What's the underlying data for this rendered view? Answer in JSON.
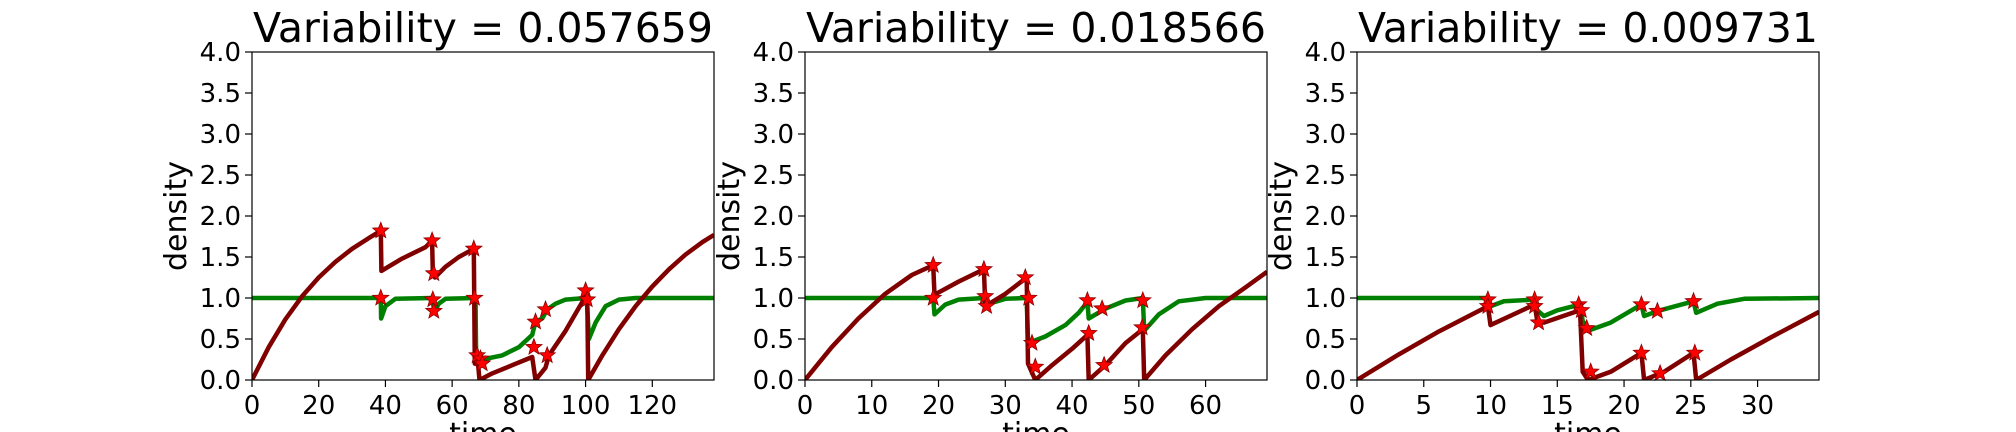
{
  "colors": {
    "green": "#008000",
    "darkred": "#800000",
    "marker": "#ff0000"
  },
  "chart_data": [
    {
      "type": "line",
      "title": "Variability = 0.057659",
      "xlabel": "time",
      "ylabel": "density",
      "xlim": [
        0,
        138.5
      ],
      "ylim": [
        0,
        4.0
      ],
      "xticks": [
        0,
        20,
        40,
        60,
        80,
        100,
        120
      ],
      "yticks": [
        0.0,
        0.5,
        1.0,
        1.5,
        2.0,
        2.5,
        3.0,
        3.5,
        4.0
      ],
      "series": [
        {
          "color": "#008000",
          "points": [
            [
              0,
              1.0
            ],
            [
              38.6,
              1.0
            ],
            [
              38.7,
              0.75
            ],
            [
              40,
              0.9
            ],
            [
              43,
              0.99
            ],
            [
              54,
              1.0
            ],
            [
              54.2,
              0.93
            ],
            [
              54.8,
              0.84
            ],
            [
              56,
              0.93
            ],
            [
              58,
              0.99
            ],
            [
              67,
              1.0
            ],
            [
              67.2,
              0.2
            ],
            [
              69,
              0.25
            ],
            [
              75,
              0.3
            ],
            [
              80,
              0.4
            ],
            [
              84,
              0.55
            ],
            [
              85,
              0.71
            ],
            [
              87,
              0.75
            ],
            [
              88.5,
              0.86
            ],
            [
              91,
              0.93
            ],
            [
              94,
              0.98
            ],
            [
              100,
              1.0
            ],
            [
              100.5,
              0.9
            ],
            [
              101,
              0.5
            ],
            [
              103,
              0.7
            ],
            [
              106,
              0.9
            ],
            [
              110,
              0.98
            ],
            [
              115,
              1.0
            ],
            [
              138.5,
              1.0
            ]
          ]
        },
        {
          "color": "#800000",
          "points": [
            [
              0,
              0
            ],
            [
              5,
              0.4
            ],
            [
              10,
              0.74
            ],
            [
              15,
              1.02
            ],
            [
              20,
              1.25
            ],
            [
              25,
              1.44
            ],
            [
              30,
              1.6
            ],
            [
              35,
              1.73
            ],
            [
              38.6,
              1.82
            ],
            [
              38.8,
              1.33
            ],
            [
              45,
              1.48
            ],
            [
              52,
              1.62
            ],
            [
              54,
              1.7
            ],
            [
              54.2,
              1.32
            ],
            [
              54.8,
              1.25
            ],
            [
              58,
              1.38
            ],
            [
              62,
              1.5
            ],
            [
              66.5,
              1.6
            ],
            [
              66.8,
              0.2
            ],
            [
              67.5,
              0.31
            ],
            [
              68.2,
              0.0
            ],
            [
              72,
              0.08
            ],
            [
              78,
              0.18
            ],
            [
              84,
              0.28
            ],
            [
              85,
              0.0
            ],
            [
              88,
              0.15
            ],
            [
              89,
              0.3
            ],
            [
              94,
              0.6
            ],
            [
              99,
              0.95
            ],
            [
              100.5,
              1.09
            ],
            [
              100.8,
              0.0
            ],
            [
              105,
              0.3
            ],
            [
              110,
              0.62
            ],
            [
              115,
              0.9
            ],
            [
              120,
              1.14
            ],
            [
              125,
              1.35
            ],
            [
              130,
              1.53
            ],
            [
              135,
              1.68
            ],
            [
              138.5,
              1.77
            ]
          ]
        }
      ],
      "markers": [
        [
          38.6,
          1.82
        ],
        [
          38.6,
          1.0
        ],
        [
          54,
          1.7
        ],
        [
          54.5,
          1.3
        ],
        [
          54.2,
          0.98
        ],
        [
          54.5,
          0.84
        ],
        [
          66.5,
          1.6
        ],
        [
          66.7,
          1.0
        ],
        [
          67.5,
          0.3
        ],
        [
          68.5,
          0.26
        ],
        [
          69,
          0.2
        ],
        [
          84.5,
          0.4
        ],
        [
          85,
          0.71
        ],
        [
          88,
          0.86
        ],
        [
          88.5,
          0.3
        ],
        [
          100,
          1.09
        ],
        [
          100.5,
          0.98
        ]
      ]
    },
    {
      "type": "line",
      "title": "Variability = 0.018566",
      "xlabel": "time",
      "ylabel": "density",
      "xlim": [
        0,
        69.2
      ],
      "ylim": [
        0,
        4.0
      ],
      "xticks": [
        0,
        10,
        20,
        30,
        40,
        50,
        60
      ],
      "yticks": [
        0.0,
        0.5,
        1.0,
        1.5,
        2.0,
        2.5,
        3.0,
        3.5,
        4.0
      ],
      "series": [
        {
          "color": "#008000",
          "points": [
            [
              0,
              1.0
            ],
            [
              19.2,
              1.0
            ],
            [
              19.4,
              0.8
            ],
            [
              21,
              0.92
            ],
            [
              23,
              0.98
            ],
            [
              26.8,
              1.0
            ],
            [
              27,
              0.88
            ],
            [
              28,
              0.94
            ],
            [
              30,
              0.99
            ],
            [
              33.2,
              1.0
            ],
            [
              33.4,
              0.45
            ],
            [
              36,
              0.53
            ],
            [
              39,
              0.67
            ],
            [
              41,
              0.82
            ],
            [
              42.3,
              0.95
            ],
            [
              42.5,
              0.75
            ],
            [
              45,
              0.87
            ],
            [
              48,
              0.97
            ],
            [
              50.6,
              1.0
            ],
            [
              50.8,
              0.6
            ],
            [
              53,
              0.8
            ],
            [
              56,
              0.96
            ],
            [
              60,
              1.0
            ],
            [
              69.2,
              1.0
            ]
          ]
        },
        {
          "color": "#800000",
          "points": [
            [
              0,
              0
            ],
            [
              4,
              0.4
            ],
            [
              8,
              0.75
            ],
            [
              12,
              1.05
            ],
            [
              16,
              1.28
            ],
            [
              19.2,
              1.4
            ],
            [
              19.4,
              1.04
            ],
            [
              23,
              1.2
            ],
            [
              26.8,
              1.35
            ],
            [
              27,
              0.9
            ],
            [
              30,
              1.05
            ],
            [
              33.2,
              1.25
            ],
            [
              33.4,
              0.2
            ],
            [
              34.5,
              0.0
            ],
            [
              37,
              0.18
            ],
            [
              40,
              0.38
            ],
            [
              42.3,
              0.55
            ],
            [
              42.5,
              0.0
            ],
            [
              45,
              0.18
            ],
            [
              48,
              0.45
            ],
            [
              50.6,
              0.62
            ],
            [
              50.8,
              0.0
            ],
            [
              54,
              0.3
            ],
            [
              58,
              0.62
            ],
            [
              62,
              0.9
            ],
            [
              66,
              1.13
            ],
            [
              69.2,
              1.32
            ]
          ]
        }
      ],
      "markers": [
        [
          19.2,
          1.4
        ],
        [
          19.2,
          1.0
        ],
        [
          26.8,
          1.35
        ],
        [
          27,
          1.02
        ],
        [
          27.2,
          0.9
        ],
        [
          33,
          1.25
        ],
        [
          33.5,
          1.0
        ],
        [
          34,
          0.45
        ],
        [
          34.5,
          0.16
        ],
        [
          42.3,
          0.97
        ],
        [
          42.5,
          0.57
        ],
        [
          44.5,
          0.87
        ],
        [
          44.8,
          0.18
        ],
        [
          50.6,
          0.97
        ],
        [
          50.5,
          0.64
        ]
      ]
    },
    {
      "type": "line",
      "title": "Variability = 0.009731",
      "xlabel": "time",
      "ylabel": "density",
      "xlim": [
        0,
        34.6
      ],
      "ylim": [
        0,
        4.0
      ],
      "xticks": [
        0,
        5,
        10,
        15,
        20,
        25,
        30
      ],
      "yticks": [
        0.0,
        0.5,
        1.0,
        1.5,
        2.0,
        2.5,
        3.0,
        3.5,
        4.0
      ],
      "series": [
        {
          "color": "#008000",
          "points": [
            [
              0,
              1.0
            ],
            [
              9.8,
              1.0
            ],
            [
              10,
              0.9
            ],
            [
              11,
              0.96
            ],
            [
              13.3,
              0.98
            ],
            [
              13.5,
              0.85
            ],
            [
              14,
              0.78
            ],
            [
              15,
              0.85
            ],
            [
              16.7,
              0.92
            ],
            [
              16.9,
              0.72
            ],
            [
              17.3,
              0.6
            ],
            [
              19,
              0.7
            ],
            [
              21.3,
              0.92
            ],
            [
              21.5,
              0.78
            ],
            [
              22.5,
              0.84
            ],
            [
              25.2,
              0.96
            ],
            [
              25.4,
              0.82
            ],
            [
              27,
              0.93
            ],
            [
              29,
              0.99
            ],
            [
              34.6,
              1.0
            ]
          ]
        },
        {
          "color": "#800000",
          "points": [
            [
              0,
              0
            ],
            [
              3,
              0.3
            ],
            [
              6,
              0.58
            ],
            [
              9.8,
              0.9
            ],
            [
              10,
              0.67
            ],
            [
              13.3,
              0.92
            ],
            [
              13.5,
              0.72
            ],
            [
              14,
              0.7
            ],
            [
              16.7,
              0.85
            ],
            [
              16.9,
              0.1
            ],
            [
              17.3,
              0.0
            ],
            [
              19,
              0.1
            ],
            [
              21.3,
              0.33
            ],
            [
              21.5,
              0.0
            ],
            [
              23,
              0.1
            ],
            [
              25.2,
              0.33
            ],
            [
              25.4,
              0.0
            ],
            [
              28,
              0.25
            ],
            [
              31,
              0.52
            ],
            [
              34.6,
              0.83
            ]
          ]
        }
      ],
      "markers": [
        [
          9.8,
          0.98
        ],
        [
          9.8,
          0.9
        ],
        [
          13.3,
          0.98
        ],
        [
          13.3,
          0.9
        ],
        [
          13.6,
          0.7
        ],
        [
          16.6,
          0.92
        ],
        [
          16.8,
          0.85
        ],
        [
          17.2,
          0.63
        ],
        [
          17.5,
          0.1
        ],
        [
          21.3,
          0.92
        ],
        [
          21.3,
          0.33
        ],
        [
          22.5,
          0.84
        ],
        [
          22.7,
          0.08
        ],
        [
          25.2,
          0.96
        ],
        [
          25.3,
          0.33
        ]
      ]
    }
  ]
}
